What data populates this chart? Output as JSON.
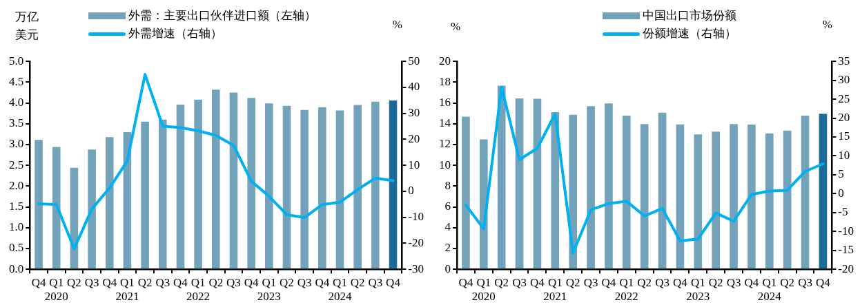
{
  "chart_data": [
    {
      "type": "bar",
      "ylabel": "万亿美元",
      "y2label": "%",
      "legend": "top",
      "categories": [
        "Q4",
        "Q1\n2020",
        "Q2",
        "Q3",
        "Q4",
        "Q1\n2021",
        "Q2",
        "Q3",
        "Q4",
        "Q1\n2022",
        "Q2",
        "Q3",
        "Q4",
        "Q1\n2023",
        "Q2",
        "Q3",
        "Q4",
        "Q1\n2024",
        "Q2",
        "Q3",
        "Q4"
      ],
      "series": [
        {
          "name": "外需：主要出口伙伴进口额（左轴）",
          "color": "#73a2bb",
          "colors": [
            "#73a2bb",
            "#73a2bb",
            "#73a2bb",
            "#73a2bb",
            "#73a2bb",
            "#73a2bb",
            "#73a2bb",
            "#73a2bb",
            "#73a2bb",
            "#73a2bb",
            "#73a2bb",
            "#73a2bb",
            "#73a2bb",
            "#73a2bb",
            "#73a2bb",
            "#73a2bb",
            "#73a2bb",
            "#73a2bb",
            "#73a2bb",
            "#73a2bb",
            "#1a6a9a"
          ],
          "values": [
            3.11,
            2.94,
            2.44,
            2.88,
            3.18,
            3.3,
            3.55,
            3.6,
            3.96,
            4.08,
            4.32,
            4.25,
            4.12,
            3.99,
            3.93,
            3.83,
            3.9,
            3.82,
            3.95,
            4.03,
            4.06
          ]
        },
        {
          "name": "外需增速（右轴）",
          "type": "line",
          "axis": "y2",
          "color": "#00b0f0",
          "values": [
            -4.8,
            -5.1,
            -22.1,
            -6.8,
            1.3,
            11.7,
            45,
            25.1,
            24.5,
            23.3,
            21.5,
            17.7,
            3.9,
            -1.9,
            -9,
            -10.1,
            -5.1,
            -4.2,
            0.7,
            5.1,
            4.1
          ]
        }
      ],
      "ylim": [
        0,
        5
      ],
      "yticks": [
        {
          "value": 0,
          "label": "0.0"
        },
        {
          "value": 0.5,
          "label": "0.5"
        },
        {
          "value": 1,
          "label": "1.0"
        },
        {
          "value": 1.5,
          "label": "1.5"
        },
        {
          "value": 2,
          "label": "2.0"
        },
        {
          "value": 2.5,
          "label": "2.5"
        },
        {
          "value": 3,
          "label": "3.0"
        },
        {
          "value": 3.5,
          "label": "3.5"
        },
        {
          "value": 4,
          "label": "4.0"
        },
        {
          "value": 4.5,
          "label": "4.5"
        },
        {
          "value": 5,
          "label": "5.0"
        }
      ],
      "y2lim": [
        -30,
        50
      ],
      "y2ticks": [
        -30,
        -20,
        -10,
        0,
        10,
        20,
        30,
        40,
        50
      ]
    },
    {
      "type": "bar",
      "ylabel": "%",
      "y2label": "%",
      "legend": "top",
      "categories": [
        "Q4",
        "Q1\n2020",
        "Q2",
        "Q3",
        "Q4",
        "Q1\n2021",
        "Q2",
        "Q3",
        "Q4",
        "Q1\n2022",
        "Q2",
        "Q3",
        "Q4",
        "Q1\n2023",
        "Q2",
        "Q3",
        "Q4",
        "Q1\n2024",
        "Q2",
        "Q3",
        "Q4"
      ],
      "series": [
        {
          "name": "中国出口市场份额",
          "color": "#73a2bb",
          "colors": [
            "#73a2bb",
            "#73a2bb",
            "#73a2bb",
            "#73a2bb",
            "#73a2bb",
            "#73a2bb",
            "#73a2bb",
            "#73a2bb",
            "#73a2bb",
            "#73a2bb",
            "#73a2bb",
            "#73a2bb",
            "#73a2bb",
            "#73a2bb",
            "#73a2bb",
            "#73a2bb",
            "#73a2bb",
            "#73a2bb",
            "#73a2bb",
            "#73a2bb",
            "#1a6a9a"
          ],
          "values": [
            14.68,
            12.5,
            17.67,
            16.43,
            16.41,
            15.12,
            14.86,
            15.7,
            15.96,
            14.78,
            13.97,
            15.07,
            13.94,
            12.97,
            13.24,
            13.97,
            13.92,
            13.08,
            13.34,
            14.78,
            14.97
          ]
        },
        {
          "name": "份额增速（右轴）",
          "type": "line",
          "axis": "y2",
          "color": "#00b0f0",
          "values": [
            -3.0,
            -9.3,
            28.2,
            9.0,
            12.0,
            21.1,
            -15.7,
            -4.3,
            -2.6,
            -2.0,
            -5.9,
            -3.9,
            -12.5,
            -12.0,
            -5.1,
            -7.3,
            -0.2,
            0.7,
            0.9,
            5.9,
            7.9
          ]
        }
      ],
      "ylim": [
        0,
        20
      ],
      "yticks": [
        0,
        2,
        4,
        6,
        8,
        10,
        12,
        14,
        16,
        18,
        20
      ],
      "y2lim": [
        -20,
        35
      ],
      "y2ticks": [
        -20,
        -15,
        -10,
        -5,
        0,
        5,
        10,
        15,
        20,
        25,
        30,
        35
      ]
    }
  ]
}
